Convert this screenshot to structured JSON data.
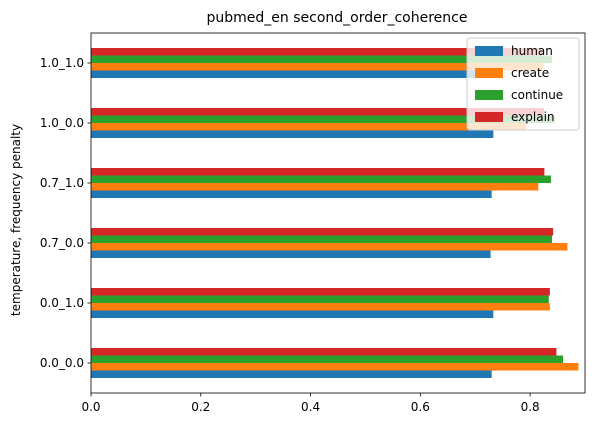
{
  "chart_data": {
    "type": "bar",
    "orientation": "horizontal",
    "title": "pubmed_en second_order_coherence",
    "xlabel": "",
    "ylabel": "temperature, frequency penalty",
    "categories": [
      "0.0_0.0",
      "0.0_1.0",
      "0.7_0.0",
      "0.7_1.0",
      "1.0_0.0",
      "1.0_1.0"
    ],
    "xlim": [
      0,
      0.9
    ],
    "xticks": [
      0.0,
      0.2,
      0.4,
      0.6,
      0.8
    ],
    "xtick_labels": [
      "0.0",
      "0.2",
      "0.4",
      "0.6",
      "0.8"
    ],
    "grid": false,
    "legend_position": "top-right",
    "series": [
      {
        "name": "human",
        "color": "#1f77b4",
        "values": [
          0.73,
          0.733,
          0.728,
          0.73,
          0.733,
          0.73
        ]
      },
      {
        "name": "create",
        "color": "#ff7f0e",
        "values": [
          0.888,
          0.836,
          0.868,
          0.815,
          0.793,
          0.823
        ]
      },
      {
        "name": "continue",
        "color": "#2ca02c",
        "values": [
          0.86,
          0.834,
          0.84,
          0.838,
          0.845,
          0.84
        ]
      },
      {
        "name": "explain",
        "color": "#d62728",
        "values": [
          0.848,
          0.836,
          0.842,
          0.826,
          0.825,
          0.822
        ]
      }
    ]
  }
}
